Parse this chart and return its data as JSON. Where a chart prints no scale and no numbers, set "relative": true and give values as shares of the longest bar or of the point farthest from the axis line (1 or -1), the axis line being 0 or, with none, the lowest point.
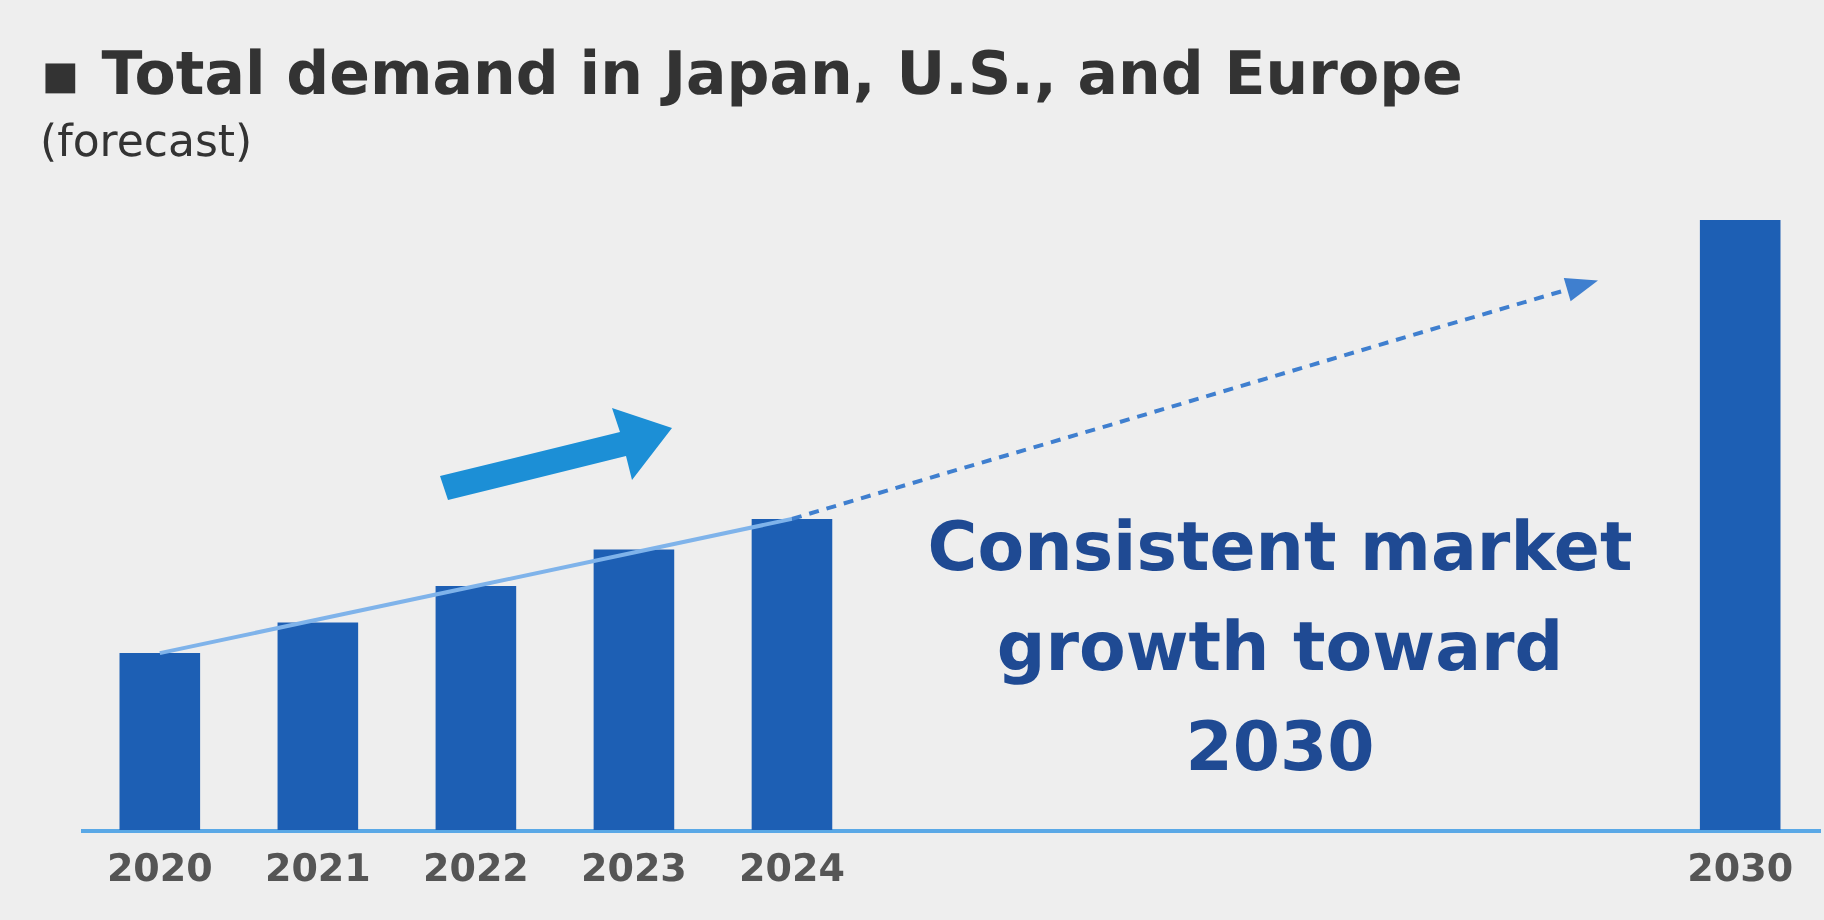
{
  "chart_data": {
    "type": "bar",
    "title": "▪ Total demand in Japan, U.S., and Europe",
    "subtitle": "(forecast)",
    "categories": [
      "2020",
      "2021",
      "2022",
      "2023",
      "2024",
      null,
      null,
      null,
      null,
      null,
      "2030"
    ],
    "series": [
      {
        "color": "#1d5fb4",
        "values": [
          0.29,
          0.34,
          0.4,
          0.46,
          0.51,
          null,
          null,
          null,
          null,
          null,
          1
        ]
      },
      {
        "type": "line",
        "color": "#7fb3ea",
        "values": [
          0.29,
          0.345,
          0.4,
          0.455,
          0.51,
          null,
          null,
          null,
          null,
          null,
          null
        ],
        "line_style": "solid"
      },
      {
        "type": "line",
        "color": "#3f7fcf",
        "values": [
          null,
          null,
          null,
          null,
          0.51,
          0.587,
          0.663,
          0.74,
          0.817,
          0.893,
          null
        ],
        "line_style": "dashed"
      }
    ],
    "relative": true,
    "annotations": [
      "Consistent market growth toward 2030"
    ]
  }
}
